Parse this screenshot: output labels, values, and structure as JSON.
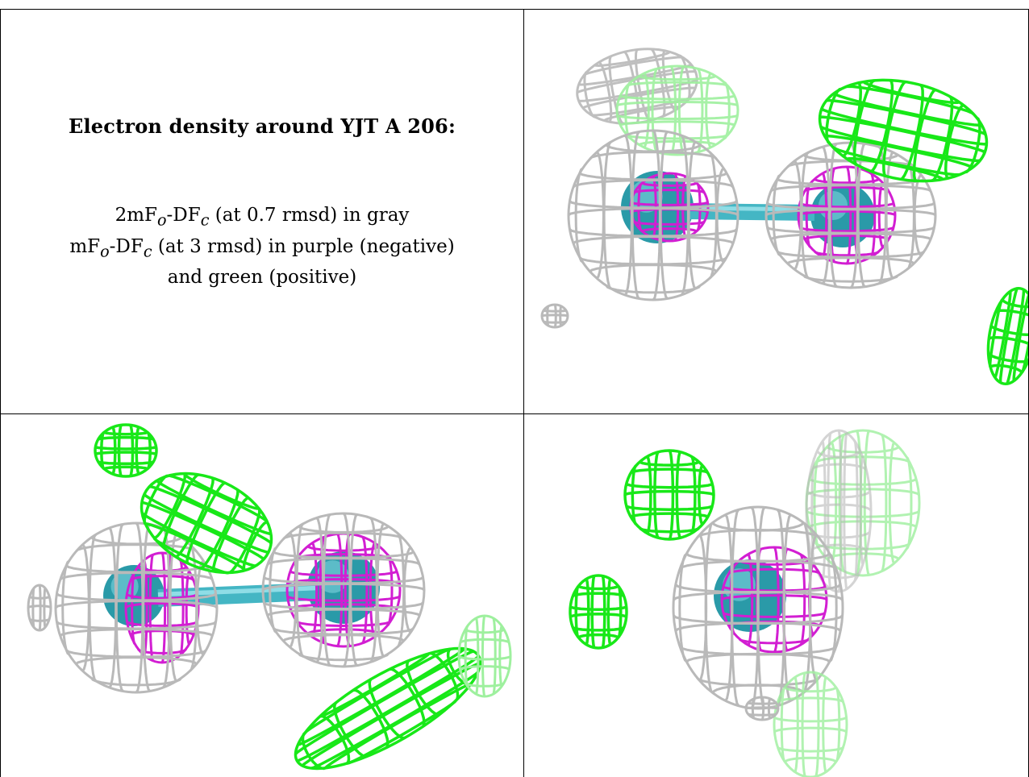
{
  "caption": {
    "title": "Electron density around YJT A 206:",
    "line1": {
      "prefix": "2mF",
      "sub1": "o",
      "mid": "-DF",
      "sub2": "c",
      "suffix": " (at 0.7 rmsd) in gray"
    },
    "line2": {
      "prefix": "mF",
      "sub1": "o",
      "mid": "-DF",
      "sub2": "c",
      "suffix": " (at 3 rmsd) in purple (negative)"
    },
    "line3": "and green (positive)"
  },
  "colors": {
    "gray_mesh": "#b9b9b9",
    "green_mesh": "#18e818",
    "light_green_mesh": "#9ef09e",
    "purple_mesh": "#d21ed2",
    "bond_teal": "#44b6c4",
    "atom_teal": "#2a9aa8",
    "border": "#000000"
  },
  "panels": [
    {
      "view": "top-right"
    },
    {
      "view": "bottom-left"
    },
    {
      "view": "bottom-right"
    }
  ]
}
